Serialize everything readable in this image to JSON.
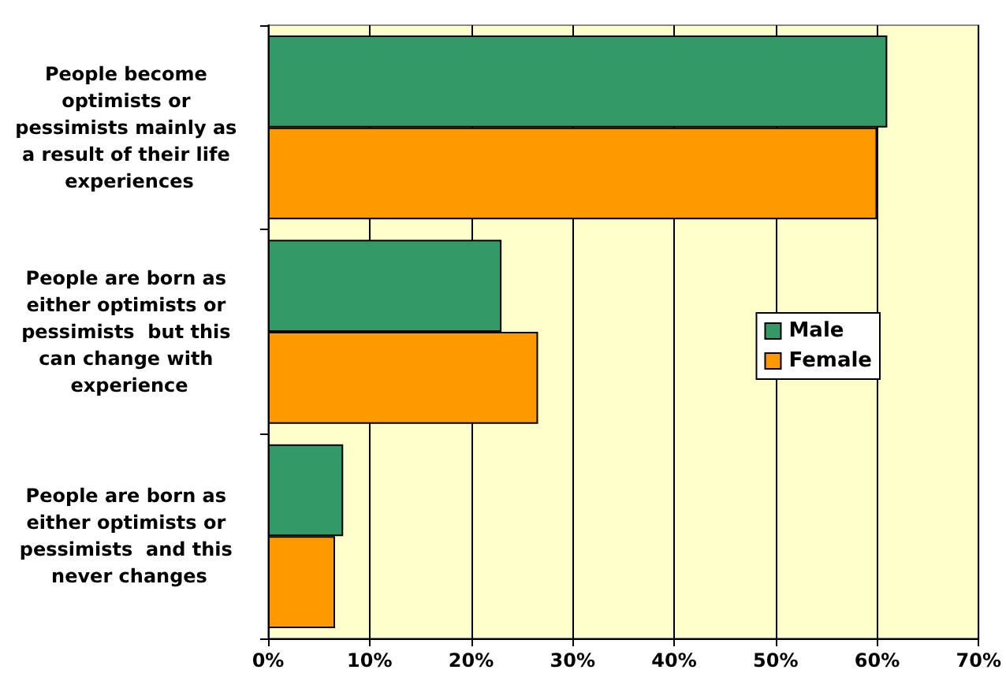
{
  "chart_data": {
    "type": "bar",
    "orientation": "horizontal",
    "categories": [
      "People become optimists or pessimists mainly as a result of their life experiences",
      "People are born as either optimists or pessimists  but this can change with experience",
      "People are born as either optimists or pessimists  and this never changes"
    ],
    "series": [
      {
        "name": "Male",
        "color": "#339966",
        "values": [
          61,
          23,
          7.4
        ]
      },
      {
        "name": "Female",
        "color": "#ff9900",
        "values": [
          60,
          26.6,
          6.6
        ]
      }
    ],
    "xlim": [
      0,
      70
    ],
    "xticks": [
      {
        "value": 0,
        "label": "0%"
      },
      {
        "value": 10,
        "label": "10%"
      },
      {
        "value": 20,
        "label": "20%"
      },
      {
        "value": 30,
        "label": "30%"
      },
      {
        "value": 40,
        "label": "40%"
      },
      {
        "value": 50,
        "label": "50%"
      },
      {
        "value": 60,
        "label": "60%"
      },
      {
        "value": 70,
        "label": "70%"
      }
    ],
    "grid": "x",
    "legend": "right"
  }
}
